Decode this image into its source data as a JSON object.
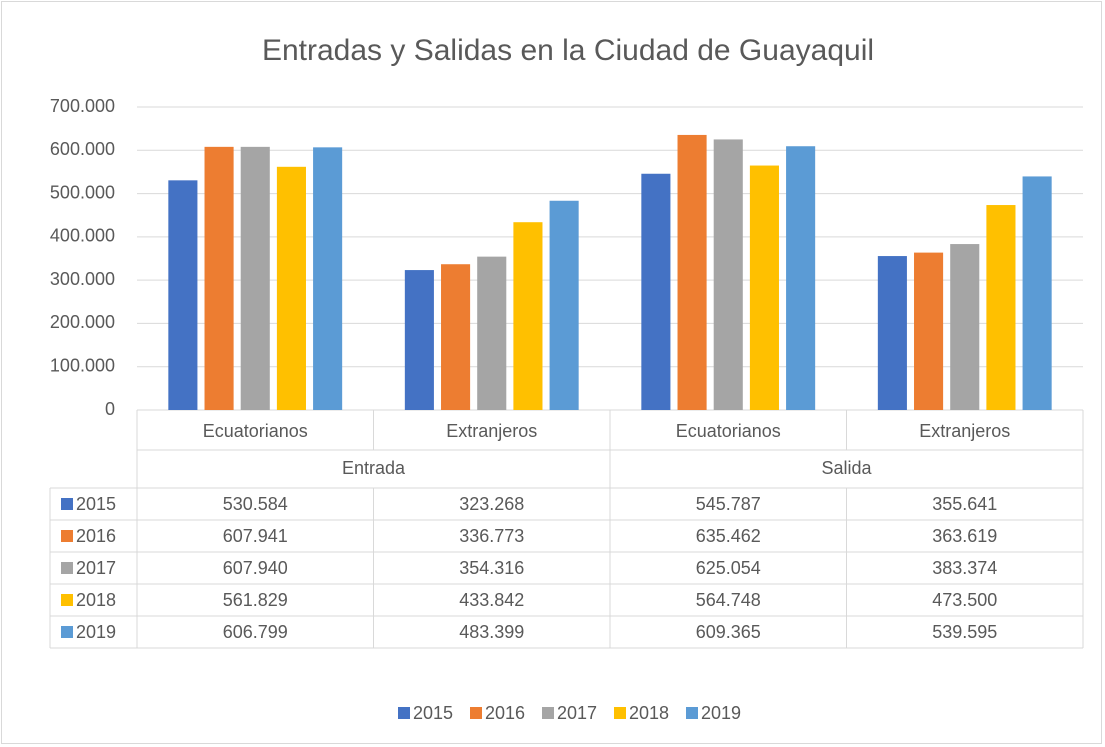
{
  "chart_data": {
    "type": "bar",
    "title": "Entradas y Salidas en la Ciudad de Guayaquil",
    "categories": [
      "Ecuatorianos",
      "Extranjeros",
      "Ecuatorianos",
      "Extranjeros"
    ],
    "groups": [
      "Entrada",
      "Salida"
    ],
    "series": [
      {
        "name": "2015",
        "color": "#4472c4",
        "values": [
          530584,
          323268,
          545787,
          355641
        ],
        "value_labels": [
          "530.584",
          "323.268",
          "545.787",
          "355.641"
        ]
      },
      {
        "name": "2016",
        "color": "#ed7d31",
        "values": [
          607941,
          336773,
          635462,
          363619
        ],
        "value_labels": [
          "607.941",
          "336.773",
          "635.462",
          "363.619"
        ]
      },
      {
        "name": "2017",
        "color": "#a5a5a5",
        "values": [
          607940,
          354316,
          625054,
          383374
        ],
        "value_labels": [
          "607.940",
          "354.316",
          "625.054",
          "383.374"
        ]
      },
      {
        "name": "2018",
        "color": "#ffc000",
        "values": [
          561829,
          433842,
          564748,
          473500
        ],
        "value_labels": [
          "561.829",
          "433.842",
          "564.748",
          "473.500"
        ]
      },
      {
        "name": "2019",
        "color": "#5b9bd5",
        "values": [
          606799,
          483399,
          609365,
          539595
        ],
        "value_labels": [
          "606.799",
          "483.399",
          "609.365",
          "539.595"
        ]
      }
    ],
    "ylim": [
      0,
      700000
    ],
    "yticks": [
      0,
      {
        "value": 100000,
        "label": "100.000"
      },
      {
        "value": 200000,
        "label": "200.000"
      },
      {
        "value": 300000,
        "label": "300.000"
      },
      {
        "value": 400000,
        "label": "400.000"
      },
      {
        "value": 500000,
        "label": "500.000"
      },
      {
        "value": 600000,
        "label": "600.000"
      },
      {
        "value": 700000,
        "label": "700.000"
      }
    ],
    "grid": true,
    "legend": "bottom"
  }
}
